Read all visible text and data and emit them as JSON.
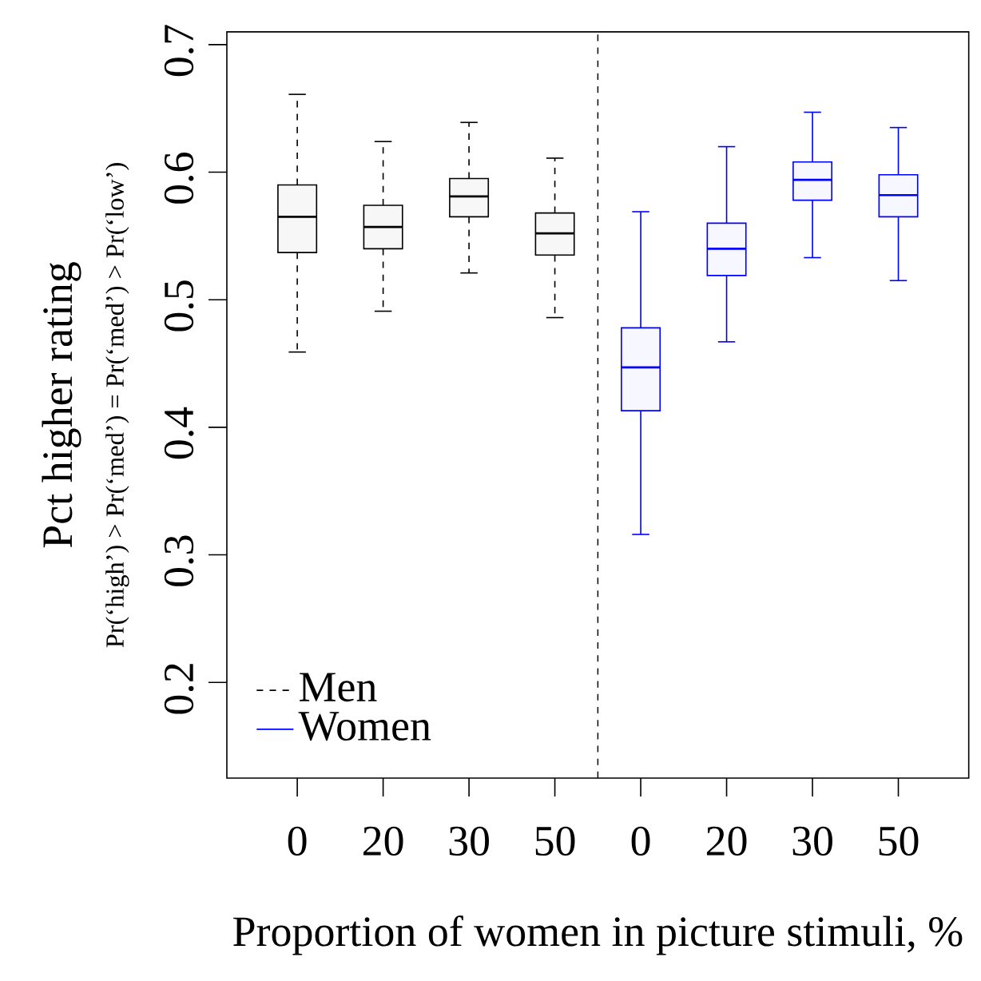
{
  "chart_data": {
    "type": "box",
    "ylabel": "Pct higher rating",
    "xlabel": "Proportion of women in picture stimuli, %",
    "annotations": [
      "Pr(‘high’) > Pr(‘med’) = Pr(‘med’) > Pr(‘low’)"
    ],
    "categories": [
      "0",
      "20",
      "30",
      "50",
      "0",
      "20",
      "30",
      "50"
    ],
    "ylim": [
      0.125,
      0.71
    ],
    "yticks": [
      0.2,
      0.3,
      0.4,
      0.5,
      0.6,
      0.7
    ],
    "series": [
      {
        "name": "Men",
        "color": "#000000",
        "line_style": "dashed",
        "boxes": [
          {
            "low": 0.459,
            "q1": 0.537,
            "median": 0.565,
            "q3": 0.59,
            "high": 0.661
          },
          {
            "low": 0.491,
            "q1": 0.54,
            "median": 0.557,
            "q3": 0.574,
            "high": 0.624
          },
          {
            "low": 0.521,
            "q1": 0.565,
            "median": 0.581,
            "q3": 0.595,
            "high": 0.639
          },
          {
            "low": 0.486,
            "q1": 0.535,
            "median": 0.552,
            "q3": 0.568,
            "high": 0.611
          },
          null,
          null,
          null,
          null
        ]
      },
      {
        "name": "Women",
        "color": "#0000ff",
        "line_style": "solid",
        "boxes": [
          null,
          null,
          null,
          null,
          {
            "low": 0.316,
            "q1": 0.413,
            "median": 0.447,
            "q3": 0.478,
            "high": 0.569
          },
          {
            "low": 0.467,
            "q1": 0.519,
            "median": 0.54,
            "q3": 0.56,
            "high": 0.62
          },
          {
            "low": 0.533,
            "q1": 0.578,
            "median": 0.594,
            "q3": 0.608,
            "high": 0.647
          },
          {
            "low": 0.515,
            "q1": 0.565,
            "median": 0.582,
            "q3": 0.598,
            "high": 0.635
          }
        ]
      }
    ],
    "legend": "bottom left",
    "marker": "none"
  }
}
